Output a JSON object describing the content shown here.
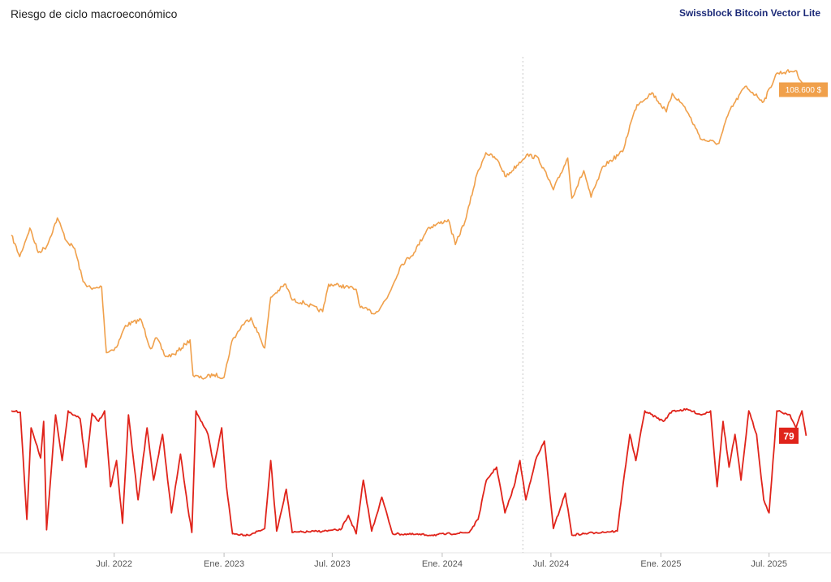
{
  "header": {
    "title": "Riesgo de ciclo macroeconómico",
    "brand": "Swissblock Bitcoin Vector Lite"
  },
  "colors": {
    "price": "#f0a04b",
    "risk": "#e0241b",
    "grid": "#e0e0e0"
  },
  "chart_data": {
    "type": "line",
    "x_range": [
      "2022-01-10",
      "2025-09-10"
    ],
    "x_ticks": [
      {
        "date": "2022-07-01",
        "label": "Jul. 2022"
      },
      {
        "date": "2023-01-01",
        "label": "Ene. 2023"
      },
      {
        "date": "2023-07-01",
        "label": "Jul. 2023"
      },
      {
        "date": "2024-01-01",
        "label": "Ene. 2024"
      },
      {
        "date": "2024-07-01",
        "label": "Jul. 2024"
      },
      {
        "date": "2025-01-01",
        "label": "Ene. 2025"
      },
      {
        "date": "2025-07-01",
        "label": "Jul. 2025"
      }
    ],
    "crosshair_date": "2024-05-15",
    "grid": false,
    "series": [
      {
        "id": "price",
        "scale": "log",
        "ylim": [
          15000,
          125000
        ],
        "last_label": "108.600 $",
        "points": [
          [
            "2022-01-10",
            42000
          ],
          [
            "2022-01-24",
            36500
          ],
          [
            "2022-02-10",
            44000
          ],
          [
            "2022-02-24",
            37500
          ],
          [
            "2022-03-10",
            39000
          ],
          [
            "2022-03-28",
            47000
          ],
          [
            "2022-04-12",
            40500
          ],
          [
            "2022-04-26",
            38500
          ],
          [
            "2022-05-10",
            31000
          ],
          [
            "2022-05-25",
            29500
          ],
          [
            "2022-06-10",
            30000
          ],
          [
            "2022-06-18",
            19500
          ],
          [
            "2022-07-05",
            20200
          ],
          [
            "2022-07-20",
            23300
          ],
          [
            "2022-08-15",
            24200
          ],
          [
            "2022-08-31",
            20000
          ],
          [
            "2022-09-10",
            21500
          ],
          [
            "2022-09-25",
            19000
          ],
          [
            "2022-10-10",
            19300
          ],
          [
            "2022-10-28",
            20600
          ],
          [
            "2022-11-05",
            21200
          ],
          [
            "2022-11-10",
            16800
          ],
          [
            "2022-11-25",
            16500
          ],
          [
            "2022-12-15",
            16900
          ],
          [
            "2023-01-01",
            16600
          ],
          [
            "2023-01-14",
            21000
          ],
          [
            "2023-02-01",
            23400
          ],
          [
            "2023-02-15",
            24500
          ],
          [
            "2023-03-10",
            20100
          ],
          [
            "2023-03-20",
            28000
          ],
          [
            "2023-04-14",
            30500
          ],
          [
            "2023-04-25",
            27500
          ],
          [
            "2023-05-15",
            27000
          ],
          [
            "2023-06-15",
            25500
          ],
          [
            "2023-06-25",
            30500
          ],
          [
            "2023-07-15",
            30200
          ],
          [
            "2023-08-10",
            29500
          ],
          [
            "2023-08-17",
            26200
          ],
          [
            "2023-09-11",
            25200
          ],
          [
            "2023-10-01",
            27900
          ],
          [
            "2023-10-24",
            34500
          ],
          [
            "2023-11-15",
            37500
          ],
          [
            "2023-12-08",
            44000
          ],
          [
            "2024-01-11",
            46500
          ],
          [
            "2024-01-23",
            39500
          ],
          [
            "2024-02-10",
            47000
          ],
          [
            "2024-02-28",
            62500
          ],
          [
            "2024-03-14",
            72000
          ],
          [
            "2024-04-01",
            69000
          ],
          [
            "2024-04-17",
            61500
          ],
          [
            "2024-05-21",
            71000
          ],
          [
            "2024-06-10",
            69500
          ],
          [
            "2024-07-05",
            56500
          ],
          [
            "2024-07-29",
            69500
          ],
          [
            "2024-08-05",
            53500
          ],
          [
            "2024-08-25",
            64000
          ],
          [
            "2024-09-06",
            53800
          ],
          [
            "2024-09-27",
            66000
          ],
          [
            "2024-10-29",
            72500
          ],
          [
            "2024-11-12",
            88000
          ],
          [
            "2024-11-22",
            98500
          ],
          [
            "2024-12-17",
            106500
          ],
          [
            "2025-01-10",
            94000
          ],
          [
            "2025-01-20",
            106000
          ],
          [
            "2025-02-10",
            97000
          ],
          [
            "2025-02-28",
            84500
          ],
          [
            "2025-03-10",
            78500
          ],
          [
            "2025-04-08",
            76500
          ],
          [
            "2025-04-25",
            94000
          ],
          [
            "2025-05-22",
            111000
          ],
          [
            "2025-06-22",
            100500
          ],
          [
            "2025-07-14",
            121000
          ],
          [
            "2025-08-14",
            123000
          ],
          [
            "2025-08-28",
            112000
          ],
          [
            "2025-09-01",
            108600
          ]
        ]
      },
      {
        "id": "risk",
        "scale": "linear",
        "ylim": [
          0,
          100
        ],
        "last_label": "79",
        "points": [
          [
            "2022-01-10",
            98
          ],
          [
            "2022-01-25",
            97
          ],
          [
            "2022-02-05",
            15
          ],
          [
            "2022-02-12",
            85
          ],
          [
            "2022-02-28",
            62
          ],
          [
            "2022-03-05",
            90
          ],
          [
            "2022-03-10",
            7
          ],
          [
            "2022-03-25",
            95
          ],
          [
            "2022-04-05",
            60
          ],
          [
            "2022-04-15",
            98
          ],
          [
            "2022-05-05",
            92
          ],
          [
            "2022-05-15",
            55
          ],
          [
            "2022-05-25",
            96
          ],
          [
            "2022-06-05",
            90
          ],
          [
            "2022-06-15",
            98
          ],
          [
            "2022-06-25",
            40
          ],
          [
            "2022-07-05",
            60
          ],
          [
            "2022-07-15",
            12
          ],
          [
            "2022-07-25",
            95
          ],
          [
            "2022-08-10",
            30
          ],
          [
            "2022-08-25",
            85
          ],
          [
            "2022-09-05",
            45
          ],
          [
            "2022-09-20",
            80
          ],
          [
            "2022-10-05",
            20
          ],
          [
            "2022-10-20",
            65
          ],
          [
            "2022-11-01",
            25
          ],
          [
            "2022-11-08",
            5
          ],
          [
            "2022-11-15",
            98
          ],
          [
            "2022-12-05",
            80
          ],
          [
            "2022-12-15",
            55
          ],
          [
            "2022-12-28",
            85
          ],
          [
            "2023-01-05",
            40
          ],
          [
            "2023-01-15",
            4
          ],
          [
            "2023-02-10",
            3
          ],
          [
            "2023-03-10",
            8
          ],
          [
            "2023-03-20",
            60
          ],
          [
            "2023-03-30",
            6
          ],
          [
            "2023-04-15",
            38
          ],
          [
            "2023-04-25",
            5
          ],
          [
            "2023-06-15",
            6
          ],
          [
            "2023-07-15",
            7
          ],
          [
            "2023-07-28",
            18
          ],
          [
            "2023-08-10",
            4
          ],
          [
            "2023-08-22",
            45
          ],
          [
            "2023-09-05",
            6
          ],
          [
            "2023-09-22",
            32
          ],
          [
            "2023-10-10",
            4
          ],
          [
            "2023-12-15",
            3
          ],
          [
            "2024-02-15",
            5
          ],
          [
            "2024-03-01",
            15
          ],
          [
            "2024-03-15",
            45
          ],
          [
            "2024-04-01",
            55
          ],
          [
            "2024-04-15",
            20
          ],
          [
            "2024-04-30",
            40
          ],
          [
            "2024-05-10",
            60
          ],
          [
            "2024-05-20",
            30
          ],
          [
            "2024-06-05",
            60
          ],
          [
            "2024-06-20",
            75
          ],
          [
            "2024-07-05",
            8
          ],
          [
            "2024-07-25",
            35
          ],
          [
            "2024-08-05",
            3
          ],
          [
            "2024-09-15",
            5
          ],
          [
            "2024-10-20",
            6
          ],
          [
            "2024-11-01",
            50
          ],
          [
            "2024-11-10",
            80
          ],
          [
            "2024-11-20",
            60
          ],
          [
            "2024-12-05",
            98
          ],
          [
            "2025-01-05",
            90
          ],
          [
            "2025-01-20",
            98
          ],
          [
            "2025-02-15",
            99
          ],
          [
            "2025-03-10",
            95
          ],
          [
            "2025-03-25",
            98
          ],
          [
            "2025-04-05",
            40
          ],
          [
            "2025-04-15",
            90
          ],
          [
            "2025-04-25",
            55
          ],
          [
            "2025-05-05",
            80
          ],
          [
            "2025-05-15",
            45
          ],
          [
            "2025-05-28",
            98
          ],
          [
            "2025-06-10",
            80
          ],
          [
            "2025-06-22",
            30
          ],
          [
            "2025-07-01",
            20
          ],
          [
            "2025-07-14",
            98
          ],
          [
            "2025-08-05",
            95
          ],
          [
            "2025-08-15",
            85
          ],
          [
            "2025-08-25",
            98
          ],
          [
            "2025-09-01",
            79
          ]
        ]
      }
    ]
  }
}
